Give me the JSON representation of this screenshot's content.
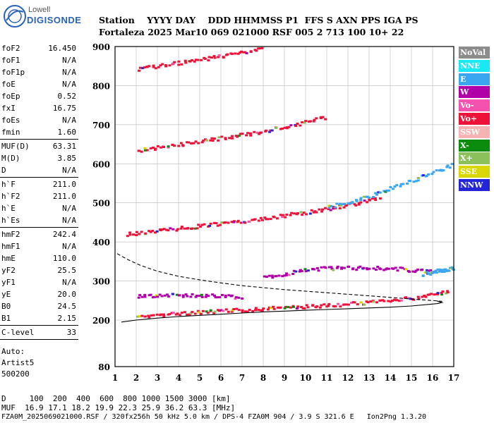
{
  "logo": {
    "line1": "Lowell",
    "line2": "DIGISONDE"
  },
  "header": {
    "line1": "Station    YYYY DAY    DDD HHMMSS P1  FFS S AXN PPS IGA PS",
    "line2": "Fortaleza 2025 Mar10 069 021000 RSF 005 2 713 100 10+ 22"
  },
  "params": {
    "group1": [
      {
        "k": "foF2",
        "v": "16.450"
      },
      {
        "k": "foF1",
        "v": "N/A"
      },
      {
        "k": "foF1p",
        "v": "N/A"
      },
      {
        "k": "foE",
        "v": "N/A"
      },
      {
        "k": "foEp",
        "v": "0.52"
      },
      {
        "k": "fxI",
        "v": "16.75"
      },
      {
        "k": "foEs",
        "v": "N/A"
      },
      {
        "k": "fmin",
        "v": "1.60"
      }
    ],
    "group2": [
      {
        "k": "MUF(D)",
        "v": "63.31"
      },
      {
        "k": "M(D)",
        "v": "3.85"
      },
      {
        "k": "D",
        "v": "N/A"
      }
    ],
    "group3": [
      {
        "k": "h`F",
        "v": "211.0"
      },
      {
        "k": "h`F2",
        "v": "211.0"
      },
      {
        "k": "h`E",
        "v": "N/A"
      },
      {
        "k": "h`Es",
        "v": "N/A"
      }
    ],
    "group4": [
      {
        "k": "hmF2",
        "v": "242.4"
      },
      {
        "k": "hmF1",
        "v": "N/A"
      },
      {
        "k": "hmE",
        "v": "110.0"
      },
      {
        "k": "yF2",
        "v": "25.5"
      },
      {
        "k": "yF1",
        "v": "N/A"
      },
      {
        "k": "yE",
        "v": "20.0"
      },
      {
        "k": "B0",
        "v": "24.5"
      },
      {
        "k": "B1",
        "v": "2.15"
      }
    ],
    "clevel": {
      "k": "C-level",
      "v": "33"
    },
    "auto": [
      "Auto:",
      "Artist5",
      "500200"
    ]
  },
  "legend": [
    {
      "label": "NoVal",
      "color": "#8c8c8c"
    },
    {
      "label": "NNE",
      "color": "#19e8f5"
    },
    {
      "label": "E",
      "color": "#3aa6f2"
    },
    {
      "label": "W",
      "color": "#b000a8"
    },
    {
      "label": "Vo-",
      "color": "#f552b0"
    },
    {
      "label": "Vo+",
      "color": "#ee1238"
    },
    {
      "label": "SSW",
      "color": "#f5b3b3"
    },
    {
      "label": "X-",
      "color": "#0c8c0c"
    },
    {
      "label": "X+",
      "color": "#8cc05a"
    },
    {
      "label": "SSE",
      "color": "#d8d800"
    },
    {
      "label": "NNW",
      "color": "#2525d8"
    }
  ],
  "chart_data": {
    "type": "scatter",
    "x_ticks": [
      "1",
      "2",
      "3",
      "4",
      "5",
      "6",
      "7",
      "8",
      "9",
      "10",
      "11",
      "12",
      "13",
      "14",
      "15",
      "16",
      "17"
    ],
    "y_ticks": [
      "900",
      "800",
      "700",
      "600",
      "500",
      "400",
      "300",
      "200",
      "80"
    ],
    "xlim": [
      1,
      17
    ],
    "ylim": [
      80,
      900
    ],
    "grid": true,
    "traces": [
      {
        "kind": "echo",
        "color": "#ee1238",
        "x": [
          2.0,
          3.0,
          4.0,
          5.0,
          6.0,
          7.0,
          8.0,
          9.0,
          10.0,
          11.0,
          12.0,
          13.0,
          14.0,
          15.0,
          16.0,
          16.8
        ],
        "y": [
          212,
          215,
          219,
          222,
          225,
          228,
          231,
          234,
          237,
          240,
          243,
          247,
          252,
          258,
          266,
          275
        ]
      },
      {
        "kind": "echo",
        "color": "#ee1238",
        "x": [
          1.5,
          2.5,
          3.5,
          4.5,
          5.5,
          6.5,
          7.5,
          8.5,
          9.5,
          10.5,
          11.5,
          12.5,
          13.5
        ],
        "y": [
          422,
          428,
          434,
          440,
          446,
          452,
          458,
          466,
          474,
          482,
          492,
          502,
          514
        ]
      },
      {
        "kind": "echo",
        "color": "#ee1238",
        "x": [
          2.0,
          3.0,
          4.0,
          5.0,
          6.0,
          7.0,
          8.0,
          9.0,
          10.0,
          11.0
        ],
        "y": [
          636,
          644,
          652,
          660,
          668,
          676,
          686,
          696,
          708,
          722
        ]
      },
      {
        "kind": "echo",
        "color": "#ee1238",
        "x": [
          2.0,
          3.0,
          4.0,
          5.0,
          6.0,
          7.0,
          8.0
        ],
        "y": [
          843,
          852,
          860,
          869,
          878,
          887,
          897
        ]
      },
      {
        "kind": "echo",
        "color": "#b000a8",
        "x": [
          2.0,
          3.0,
          4.0,
          5.0,
          6.0,
          7.0
        ],
        "y": [
          262,
          265,
          266,
          265,
          263,
          260
        ]
      },
      {
        "kind": "echo",
        "color": "#3aa6f2",
        "x": [
          11.0,
          12.0,
          13.0,
          14.0,
          15.0,
          16.0,
          17.0
        ],
        "y": [
          490,
          505,
          520,
          540,
          560,
          580,
          600
        ]
      },
      {
        "kind": "echo",
        "color": "#b000a8",
        "x": [
          8.0,
          9.0,
          10.0,
          11.0,
          12.0,
          13.0,
          14.0,
          15.0,
          16.0
        ],
        "y": [
          310,
          320,
          330,
          335,
          335,
          335,
          335,
          330,
          325
        ]
      },
      {
        "kind": "echo",
        "color": "#3aa6f2",
        "x": [
          15.5,
          16.0,
          16.5,
          17.0
        ],
        "y": [
          320,
          325,
          330,
          335
        ]
      },
      {
        "kind": "profile",
        "style": "solid",
        "x": [
          1.3,
          2.0,
          3.0,
          4.0,
          5.0,
          6.0,
          7.0,
          8.0,
          9.0,
          10.0,
          11.0,
          12.0,
          13.0,
          14.0,
          15.0,
          15.8,
          16.2,
          16.45,
          16.2
        ],
        "y": [
          195,
          200,
          205,
          209,
          212,
          215,
          218,
          221,
          223,
          225,
          227,
          229,
          231,
          233,
          236,
          240,
          242,
          245,
          249
        ]
      },
      {
        "kind": "profile",
        "style": "dashed",
        "x": [
          1.1,
          1.6,
          2.2,
          3.0,
          4.0,
          5.0,
          6.0,
          7.0,
          8.0,
          9.0,
          10.0,
          11.0,
          12.0,
          13.0,
          14.0,
          15.0,
          16.0,
          16.45
        ],
        "y": [
          370,
          355,
          340,
          325,
          312,
          303,
          295,
          288,
          283,
          278,
          274,
          270,
          266,
          262,
          258,
          254,
          250,
          248
        ]
      }
    ]
  },
  "bottom": {
    "d_row": "D     100  200  400  600  800 1000 1500 3000 [km]",
    "muf_row": "MUF  16.9 17.1 18.2 19.9 22.3 25.9 36.2 63.3 [MHz]"
  },
  "footer": "FZA0M_2025069021000.RSF / 320fx256h 50 kHz 5.0 km / DPS-4 FZA0M 904 / 3.9 S 321.6 E   Ion2Png 1.3.20"
}
